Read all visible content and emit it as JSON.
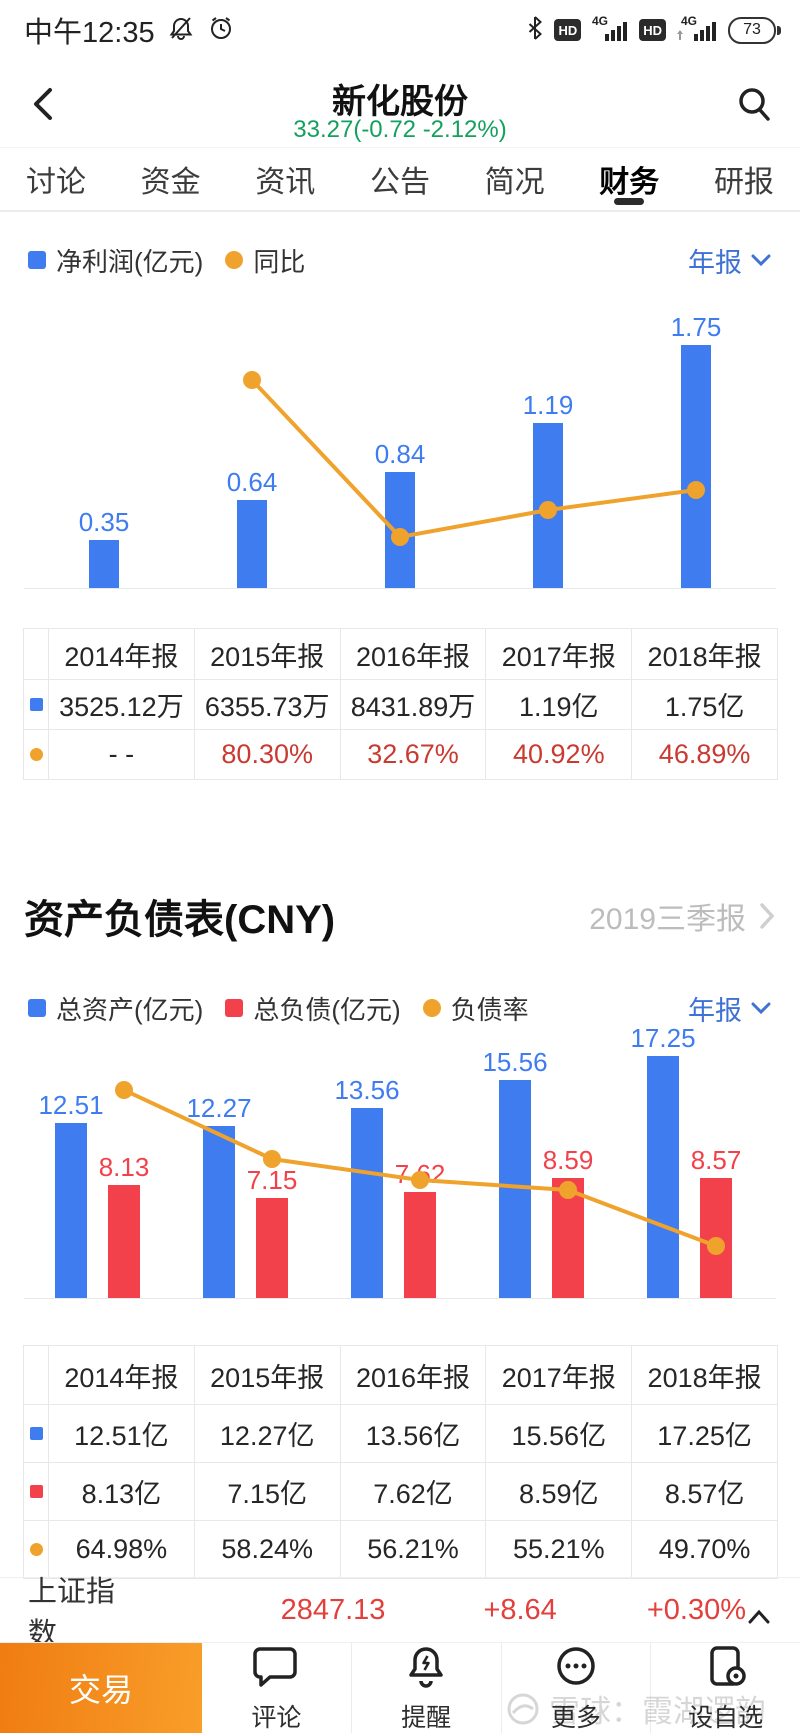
{
  "colors": {
    "blue": "#3e7cf0",
    "red": "#f3414b",
    "orange": "#efa32d",
    "green": "#14a05f",
    "link_blue": "#3f72d4",
    "table_red": "#c93a31",
    "index_red": "#e2403c"
  },
  "status_bar": {
    "time": "中午12:35",
    "hd": "HD",
    "net": "4G",
    "battery_level": "73"
  },
  "header": {
    "title": "新化股份",
    "quote": "33.27(-0.72 -2.12%)"
  },
  "tabs": [
    {
      "label": "讨论",
      "active": false
    },
    {
      "label": "资金",
      "active": false
    },
    {
      "label": "资讯",
      "active": false
    },
    {
      "label": "公告",
      "active": false
    },
    {
      "label": "简况",
      "active": false
    },
    {
      "label": "财务",
      "active": true
    },
    {
      "label": "研报",
      "active": false
    }
  ],
  "income_section": {
    "legend": [
      {
        "label": "净利润(亿元)",
        "shape": "square",
        "color": "#3e7cf0"
      },
      {
        "label": "同比",
        "shape": "circle",
        "color": "#efa32d"
      }
    ],
    "period_selector": "年报",
    "chart_data": {
      "type": "bar+line",
      "categories": [
        "2014年报",
        "2015年报",
        "2016年报",
        "2017年报",
        "2018年报"
      ],
      "series": [
        {
          "name": "净利润(亿元)",
          "type": "bar",
          "color": "#3e7cf0",
          "values": [
            0.35,
            0.64,
            0.84,
            1.19,
            1.75
          ],
          "labels": [
            "0.35",
            "0.64",
            "0.84",
            "1.19",
            "1.75"
          ]
        },
        {
          "name": "同比",
          "type": "line",
          "color": "#efa32d",
          "unit": "%",
          "values": [
            null,
            80.3,
            32.67,
            40.92,
            46.89
          ]
        }
      ]
    },
    "table": {
      "headers": [
        "2014年报",
        "2015年报",
        "2016年报",
        "2017年报",
        "2018年报"
      ],
      "rows": [
        {
          "marker": "square",
          "marker_color": "#3e7cf0",
          "cells": [
            "3525.12万",
            "6355.73万",
            "8431.89万",
            "1.19亿",
            "1.75亿"
          ]
        },
        {
          "marker": "circle",
          "marker_color": "#efa32d",
          "cells": [
            {
              "t": "- -"
            },
            {
              "t": "80.30%",
              "c": "#c93a31"
            },
            {
              "t": "32.67%",
              "c": "#c93a31"
            },
            {
              "t": "40.92%",
              "c": "#c93a31"
            },
            {
              "t": "46.89%",
              "c": "#c93a31"
            }
          ]
        }
      ]
    }
  },
  "balance_section": {
    "title": "资产负债表(CNY)",
    "period_link": "2019三季报",
    "legend": [
      {
        "label": "总资产(亿元)",
        "shape": "square",
        "color": "#3e7cf0"
      },
      {
        "label": "总负债(亿元)",
        "shape": "square",
        "color": "#f3414b"
      },
      {
        "label": "负债率",
        "shape": "circle",
        "color": "#efa32d"
      }
    ],
    "period_selector": "年报",
    "chart_data": {
      "type": "bar+line",
      "categories": [
        "2014年报",
        "2015年报",
        "2016年报",
        "2017年报",
        "2018年报"
      ],
      "series": [
        {
          "name": "总资产(亿元)",
          "type": "bar",
          "color": "#3e7cf0",
          "values": [
            12.51,
            12.27,
            13.56,
            15.56,
            17.25
          ],
          "labels": [
            "12.51",
            "12.27",
            "13.56",
            "15.56",
            "17.25"
          ]
        },
        {
          "name": "总负债(亿元)",
          "type": "bar",
          "color": "#f3414b",
          "values": [
            8.13,
            7.15,
            7.62,
            8.59,
            8.57
          ],
          "labels": [
            "8.13",
            "7.15",
            "7.62",
            "8.59",
            "8.57"
          ]
        },
        {
          "name": "负债率",
          "type": "line",
          "color": "#efa32d",
          "unit": "%",
          "values": [
            64.98,
            58.24,
            56.21,
            55.21,
            49.7
          ]
        }
      ]
    },
    "table": {
      "headers": [
        "2014年报",
        "2015年报",
        "2016年报",
        "2017年报",
        "2018年报"
      ],
      "rows": [
        {
          "marker": "square",
          "marker_color": "#3e7cf0",
          "cells": [
            "12.51亿",
            "12.27亿",
            "13.56亿",
            "15.56亿",
            "17.25亿"
          ]
        },
        {
          "marker": "square",
          "marker_color": "#f3414b",
          "cells": [
            "8.13亿",
            "7.15亿",
            "7.62亿",
            "8.59亿",
            "8.57亿"
          ]
        },
        {
          "marker": "circle",
          "marker_color": "#efa32d",
          "cells": [
            "64.98%",
            "58.24%",
            "56.21%",
            "55.21%",
            "49.70%"
          ]
        }
      ]
    }
  },
  "index_bar": {
    "label": "上证指数",
    "value": "2847.13",
    "change": "+8.64",
    "change_percent": "+0.30%"
  },
  "bottom_nav": {
    "trade_label": "交易",
    "items": [
      {
        "label": "评论",
        "icon": "comment-icon"
      },
      {
        "label": "提醒",
        "icon": "alert-bell-icon"
      },
      {
        "label": "更多",
        "icon": "more-icon"
      },
      {
        "label": "设自选",
        "icon": "add-watchlist-icon"
      }
    ]
  },
  "watermark": {
    "text": "雪球：霞湖逻韵"
  }
}
